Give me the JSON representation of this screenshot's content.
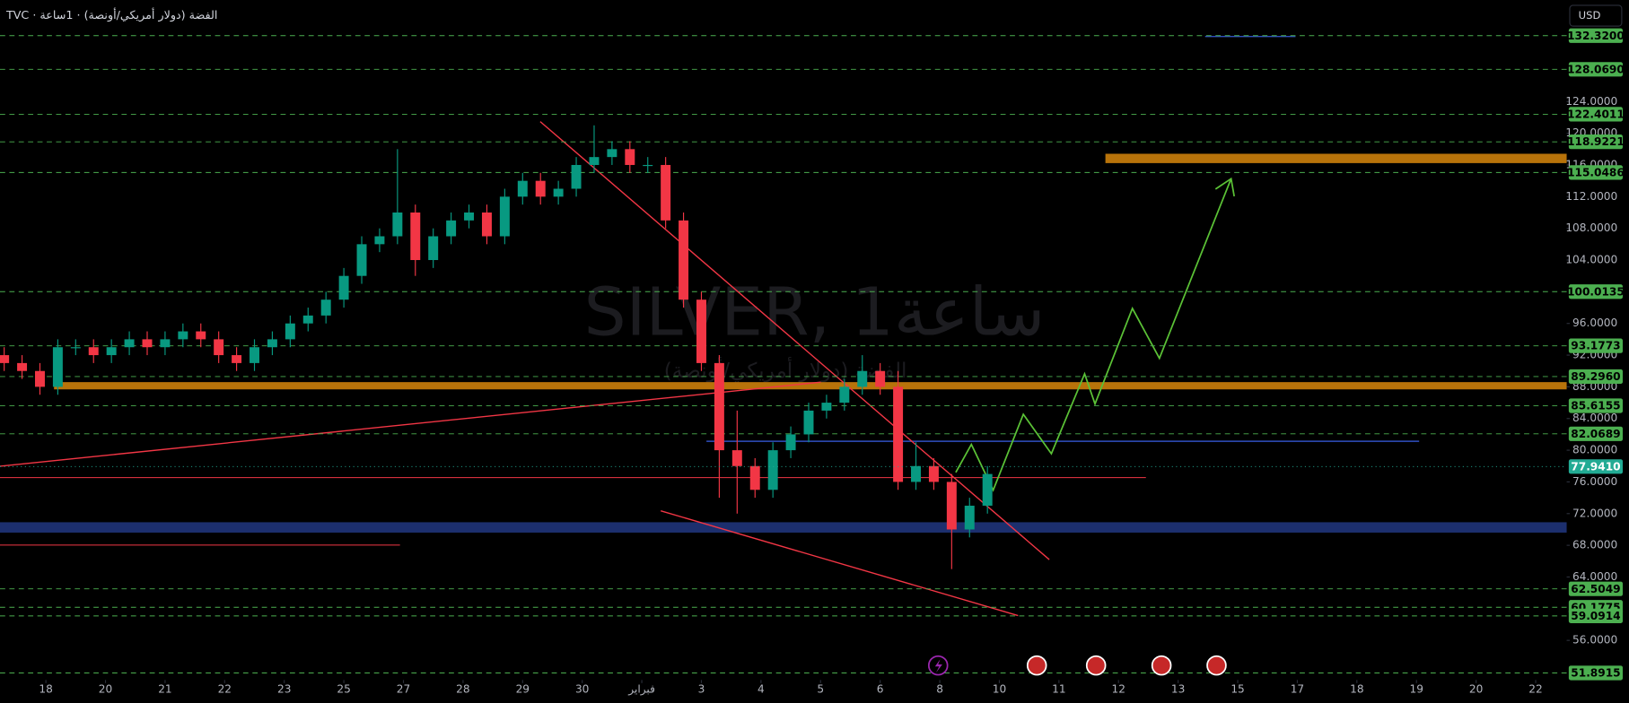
{
  "chart_data": {
    "type": "candlestick",
    "title": "TVC · الفضة (دولار أمريكي/أونصة) · 1ساعة",
    "watermark": "SILVER, 1ساعة",
    "watermark_subtitle": "الفضة (دولار أمريكي/أونصة)",
    "currency": "USD",
    "up_color": "#089981",
    "down_color": "#f23645",
    "xlim": [
      -0.77,
      25.52
    ],
    "ylim": [
      51,
      136.8
    ],
    "xticks": [
      {
        "value": 0,
        "label": "18"
      },
      {
        "value": 1,
        "label": "20"
      },
      {
        "value": 2,
        "label": "21"
      },
      {
        "value": 3,
        "label": "22"
      },
      {
        "value": 4,
        "label": "23"
      },
      {
        "value": 5,
        "label": "25"
      },
      {
        "value": 6,
        "label": "27"
      },
      {
        "value": 7,
        "label": "28"
      },
      {
        "value": 8,
        "label": "29"
      },
      {
        "value": 9,
        "label": "30"
      },
      {
        "value": 10,
        "label": "فبراير"
      },
      {
        "value": 11,
        "label": "3"
      },
      {
        "value": 12,
        "label": "4"
      },
      {
        "value": 13,
        "label": "5"
      },
      {
        "value": 14,
        "label": "6"
      },
      {
        "value": 15,
        "label": "8"
      },
      {
        "value": 16,
        "label": "10"
      },
      {
        "value": 17,
        "label": "11"
      },
      {
        "value": 18,
        "label": "12"
      },
      {
        "value": 19,
        "label": "13"
      },
      {
        "value": 20,
        "label": "15"
      },
      {
        "value": 21,
        "label": "17"
      },
      {
        "value": 22,
        "label": "18"
      },
      {
        "value": 23,
        "label": "19"
      },
      {
        "value": 24,
        "label": "20"
      },
      {
        "value": 25,
        "label": "22"
      }
    ],
    "yticks": [
      {
        "value": 56,
        "label": "56.0000"
      },
      {
        "value": 64,
        "label": "64.0000"
      },
      {
        "value": 68,
        "label": "68.0000"
      },
      {
        "value": 72,
        "label": "72.0000"
      },
      {
        "value": 76,
        "label": "76.0000"
      },
      {
        "value": 80,
        "label": "80.0000"
      },
      {
        "value": 84,
        "label": "84.0000"
      },
      {
        "value": 88,
        "label": "88.0000"
      },
      {
        "value": 92,
        "label": "92.0000"
      },
      {
        "value": 96,
        "label": "96.0000"
      },
      {
        "value": 104,
        "label": "104.0000"
      },
      {
        "value": 108,
        "label": "108.0000"
      },
      {
        "value": 112,
        "label": "112.0000"
      },
      {
        "value": 116,
        "label": "116.0000"
      },
      {
        "value": 120,
        "label": "120.0000"
      },
      {
        "value": 124,
        "label": "124.0000"
      }
    ],
    "levels": {
      "color": "#4caf50",
      "values": [
        132.32,
        128.069,
        122.4011,
        118.9221,
        115.0486,
        100.0135,
        93.1773,
        89.296,
        85.6155,
        82.0689,
        62.5049,
        60.1775,
        59.0914,
        51.8915
      ],
      "value_labels": [
        "132.3200",
        "128.0690",
        "122.4011",
        "118.9221",
        "115.0486",
        "100.0135",
        "93.1773",
        "89.2960",
        "85.6155",
        "82.0689",
        "62.5049",
        "60.1775",
        "59.0914",
        "51.8915"
      ]
    },
    "last_price": {
      "value": 77.941,
      "label": "77.9410",
      "color": "#22ab94"
    },
    "x": [
      -0.7,
      -0.4,
      -0.1,
      0.2,
      0.5,
      0.8,
      1.1,
      1.4,
      1.7,
      2.0,
      2.3,
      2.6,
      2.9,
      3.2,
      3.5,
      3.8,
      4.1,
      4.4,
      4.7,
      5.0,
      5.3,
      5.6,
      5.9,
      6.2,
      6.5,
      6.8,
      7.1,
      7.4,
      7.7,
      8.0,
      8.3,
      8.6,
      8.9,
      9.2,
      9.5,
      9.8,
      10.1,
      10.4,
      10.7,
      11.0,
      11.3,
      11.6,
      11.9,
      12.2,
      12.5,
      12.8,
      13.1,
      13.4,
      13.7,
      14.0,
      14.3,
      14.6,
      14.9,
      15.2,
      15.5,
      15.8
    ],
    "open": [
      92,
      91,
      90,
      88,
      93,
      93,
      92,
      93,
      94,
      93,
      94,
      95,
      94,
      92,
      91,
      93,
      94,
      96,
      97,
      99,
      102,
      106,
      107,
      110,
      104,
      107,
      109,
      110,
      107,
      112,
      114,
      112,
      113,
      116,
      117,
      118,
      116,
      116,
      109,
      99,
      91,
      80,
      78,
      75,
      80,
      82,
      85,
      86,
      88,
      90,
      88,
      76,
      78,
      76,
      70,
      73
    ],
    "high": [
      93,
      92,
      91,
      94,
      94,
      94,
      94,
      95,
      95,
      95,
      96,
      96,
      95,
      93,
      94,
      95,
      97,
      98,
      100,
      103,
      107,
      108,
      118,
      111,
      108,
      110,
      111,
      111,
      113,
      115,
      115,
      114,
      117,
      121,
      119,
      119,
      117,
      117,
      110,
      100,
      92,
      85,
      79,
      81,
      83,
      86,
      87,
      89,
      92,
      91,
      90,
      81,
      79,
      77,
      74,
      78
    ],
    "low": [
      90,
      89,
      87,
      87,
      92,
      91,
      91,
      92,
      92,
      92,
      93,
      93,
      91,
      90,
      90,
      92,
      93,
      95,
      96,
      98,
      101,
      105,
      106,
      102,
      103,
      106,
      108,
      106,
      106,
      111,
      111,
      111,
      112,
      115,
      116,
      115,
      115,
      108,
      98,
      90,
      74,
      72,
      74,
      74,
      79,
      81,
      84,
      85,
      87,
      87,
      75,
      75,
      75,
      65,
      69,
      72
    ],
    "close": [
      91,
      90,
      88,
      93,
      93,
      92,
      93,
      94,
      93,
      94,
      95,
      94,
      92,
      91,
      93,
      94,
      96,
      97,
      99,
      102,
      106,
      107,
      110,
      104,
      107,
      109,
      110,
      107,
      112,
      114,
      112,
      113,
      116,
      117,
      118,
      116,
      116,
      109,
      99,
      91,
      80,
      78,
      75,
      80,
      82,
      85,
      86,
      88,
      90,
      88,
      76,
      78,
      76,
      70,
      73,
      77
    ]
  }
}
